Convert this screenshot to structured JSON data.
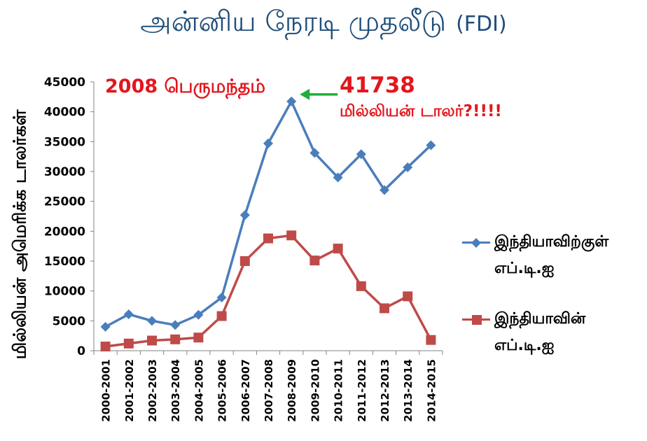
{
  "title": {
    "main": "அன்னிய நேரடி முதலீடு",
    "suffix": "(FDI)"
  },
  "annotations": {
    "recession": "2008 பெருமந்தம்",
    "peak_value": "41738",
    "unit_note": "மில்லியன் டாலர்?!!!!"
  },
  "colors": {
    "series_inflow": "#4a7ebb",
    "series_outflow": "#be4b48",
    "annotation_text": "#e3161d",
    "arrow": "#1fae3b",
    "title": "#1f4e79"
  },
  "chart_data": {
    "type": "line",
    "ylabel": "மில்லியன் அமெரிக்க டாலர்கள்",
    "xlabel": "",
    "ylim": [
      0,
      45000
    ],
    "yticks": [
      0,
      5000,
      10000,
      15000,
      20000,
      25000,
      30000,
      35000,
      40000,
      45000
    ],
    "grid": false,
    "legend_position": "right",
    "categories": [
      "2000-2001",
      "2001-2002",
      "2002-2003",
      "2003-2004",
      "2004-2005",
      "2005-2006",
      "2006-2007",
      "2007-2008",
      "2008-2009",
      "2009-2010",
      "2010-2011",
      "2011-2012",
      "2012-2013",
      "2013-2014",
      "2014-2015"
    ],
    "series": [
      {
        "name": "இந்தியாவிற்குள் எப்.டி.ஐ",
        "marker": "diamond",
        "values": [
          4000,
          6100,
          5000,
          4300,
          6000,
          8900,
          22700,
          34700,
          41738,
          33100,
          29000,
          32900,
          26900,
          30700,
          34400
        ]
      },
      {
        "name": "இந்தியாவின் எப்.டி.ஐ",
        "marker": "square",
        "values": [
          700,
          1200,
          1700,
          1900,
          2200,
          5800,
          15000,
          18800,
          19300,
          15100,
          17100,
          10800,
          7100,
          9100,
          1800
        ]
      }
    ]
  }
}
